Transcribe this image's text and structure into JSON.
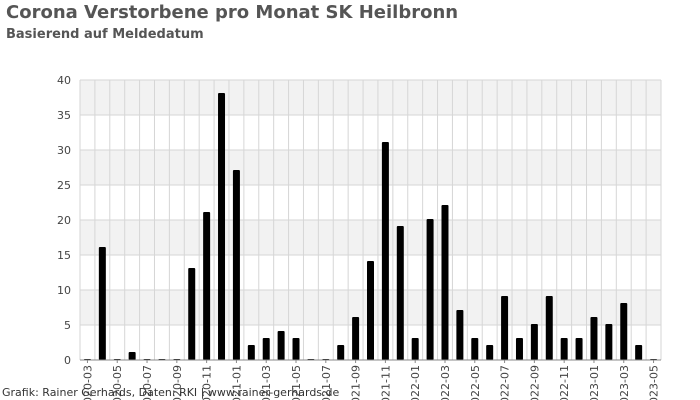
{
  "chart_data": {
    "type": "bar",
    "title": "Corona Verstorbene pro Monat SK Heilbronn",
    "subtitle": "Basierend auf Meldedatum",
    "xlabel": "",
    "ylabel": "",
    "ylim": [
      0,
      40
    ],
    "yticks": [
      0,
      5,
      10,
      15,
      20,
      25,
      30,
      35,
      40
    ],
    "grid": true,
    "bar_color": "#000000",
    "band_color": "#f2f2f2",
    "categories": [
      "2020-03",
      "2020-04",
      "2020-05",
      "2020-06",
      "2020-07",
      "2020-08",
      "2020-09",
      "2020-10",
      "2020-11",
      "2020-12",
      "2021-01",
      "2021-02",
      "2021-03",
      "2021-04",
      "2021-05",
      "2021-06",
      "2021-07",
      "2021-08",
      "2021-09",
      "2021-10",
      "2021-11",
      "2021-12",
      "2022-01",
      "2022-02",
      "2022-03",
      "2022-04",
      "2022-05",
      "2022-06",
      "2022-07",
      "2022-08",
      "2022-09",
      "2022-10",
      "2022-11",
      "2022-12",
      "2023-01",
      "2023-02",
      "2023-03",
      "2023-04",
      "2023-05"
    ],
    "values": [
      0,
      16,
      0,
      1,
      0,
      0,
      0,
      13,
      21,
      38,
      27,
      2,
      3,
      4,
      3,
      0,
      0,
      2,
      6,
      14,
      31,
      19,
      3,
      20,
      22,
      7,
      3,
      2,
      9,
      3,
      5,
      9,
      3,
      3,
      6,
      5,
      8,
      2,
      0
    ]
  },
  "credit": "Grafik: Rainer Gerhards, Daten: RKI | www.rainer-gerhards.de"
}
